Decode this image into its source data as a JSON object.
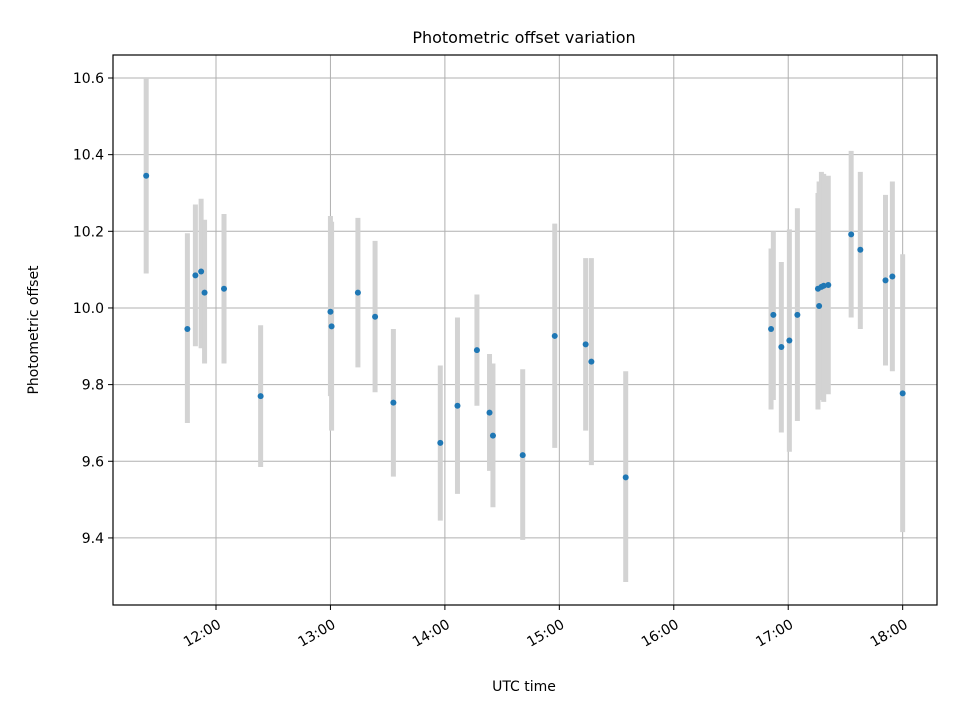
{
  "chart_data": {
    "type": "scatter",
    "title": "Photometric offset variation",
    "xlabel": "UTC time",
    "ylabel": "Photometric offset",
    "x_unit": "hours UTC",
    "xlim": [
      11.1,
      18.3
    ],
    "ylim": [
      9.225,
      10.66
    ],
    "xticks": [
      {
        "value": 12,
        "label": "12:00"
      },
      {
        "value": 13,
        "label": "13:00"
      },
      {
        "value": 14,
        "label": "14:00"
      },
      {
        "value": 15,
        "label": "15:00"
      },
      {
        "value": 16,
        "label": "16:00"
      },
      {
        "value": 17,
        "label": "17:00"
      },
      {
        "value": 18,
        "label": "18:00"
      }
    ],
    "yticks": [
      {
        "value": 9.4,
        "label": "9.4"
      },
      {
        "value": 9.6,
        "label": "9.6"
      },
      {
        "value": 9.8,
        "label": "9.8"
      },
      {
        "value": 10.0,
        "label": "10.0"
      },
      {
        "value": 10.2,
        "label": "10.2"
      },
      {
        "value": 10.4,
        "label": "10.4"
      },
      {
        "value": 10.6,
        "label": "10.6"
      }
    ],
    "grid": true,
    "colors": {
      "point": "#1f77b4",
      "errorbar": "#d3d3d3",
      "grid": "#b0b0b0"
    },
    "points": [
      {
        "x": 11.39,
        "y": 10.345,
        "lo": 10.09,
        "hi": 10.6
      },
      {
        "x": 11.75,
        "y": 9.945,
        "lo": 9.7,
        "hi": 10.195
      },
      {
        "x": 11.82,
        "y": 10.085,
        "lo": 9.9,
        "hi": 10.27
      },
      {
        "x": 11.87,
        "y": 10.095,
        "lo": 9.895,
        "hi": 10.285
      },
      {
        "x": 11.9,
        "y": 10.04,
        "lo": 9.855,
        "hi": 10.23
      },
      {
        "x": 12.07,
        "y": 10.05,
        "lo": 9.855,
        "hi": 10.245
      },
      {
        "x": 12.39,
        "y": 9.77,
        "lo": 9.585,
        "hi": 9.955
      },
      {
        "x": 13.0,
        "y": 9.99,
        "lo": 9.77,
        "hi": 10.24
      },
      {
        "x": 13.01,
        "y": 9.952,
        "lo": 9.68,
        "hi": 10.225
      },
      {
        "x": 13.24,
        "y": 10.04,
        "lo": 9.845,
        "hi": 10.235
      },
      {
        "x": 13.39,
        "y": 9.977,
        "lo": 9.78,
        "hi": 10.175
      },
      {
        "x": 13.55,
        "y": 9.753,
        "lo": 9.56,
        "hi": 9.945
      },
      {
        "x": 13.96,
        "y": 9.648,
        "lo": 9.445,
        "hi": 9.85
      },
      {
        "x": 14.11,
        "y": 9.745,
        "lo": 9.515,
        "hi": 9.975
      },
      {
        "x": 14.28,
        "y": 9.89,
        "lo": 9.745,
        "hi": 10.035
      },
      {
        "x": 14.39,
        "y": 9.727,
        "lo": 9.575,
        "hi": 9.88
      },
      {
        "x": 14.42,
        "y": 9.667,
        "lo": 9.48,
        "hi": 9.855
      },
      {
        "x": 14.68,
        "y": 9.616,
        "lo": 9.395,
        "hi": 9.84
      },
      {
        "x": 14.96,
        "y": 9.927,
        "lo": 9.635,
        "hi": 10.22
      },
      {
        "x": 15.23,
        "y": 9.905,
        "lo": 9.68,
        "hi": 10.13
      },
      {
        "x": 15.28,
        "y": 9.86,
        "lo": 9.59,
        "hi": 10.13
      },
      {
        "x": 15.58,
        "y": 9.558,
        "lo": 9.285,
        "hi": 9.835
      },
      {
        "x": 16.85,
        "y": 9.945,
        "lo": 9.735,
        "hi": 10.155
      },
      {
        "x": 16.87,
        "y": 9.982,
        "lo": 9.76,
        "hi": 10.2
      },
      {
        "x": 16.94,
        "y": 9.898,
        "lo": 9.675,
        "hi": 10.12
      },
      {
        "x": 17.01,
        "y": 9.915,
        "lo": 9.625,
        "hi": 10.205
      },
      {
        "x": 17.08,
        "y": 9.982,
        "lo": 9.705,
        "hi": 10.26
      },
      {
        "x": 17.26,
        "y": 10.05,
        "lo": 9.735,
        "hi": 10.3
      },
      {
        "x": 17.27,
        "y": 10.005,
        "lo": 9.76,
        "hi": 10.33
      },
      {
        "x": 17.29,
        "y": 10.055,
        "lo": 9.76,
        "hi": 10.355
      },
      {
        "x": 17.31,
        "y": 10.058,
        "lo": 9.755,
        "hi": 10.35
      },
      {
        "x": 17.35,
        "y": 10.06,
        "lo": 9.775,
        "hi": 10.345
      },
      {
        "x": 17.55,
        "y": 10.192,
        "lo": 9.975,
        "hi": 10.41
      },
      {
        "x": 17.63,
        "y": 10.152,
        "lo": 9.945,
        "hi": 10.355
      },
      {
        "x": 17.85,
        "y": 10.072,
        "lo": 9.85,
        "hi": 10.295
      },
      {
        "x": 17.91,
        "y": 10.082,
        "lo": 9.835,
        "hi": 10.33
      },
      {
        "x": 18.0,
        "y": 9.777,
        "lo": 9.415,
        "hi": 10.14
      }
    ]
  }
}
